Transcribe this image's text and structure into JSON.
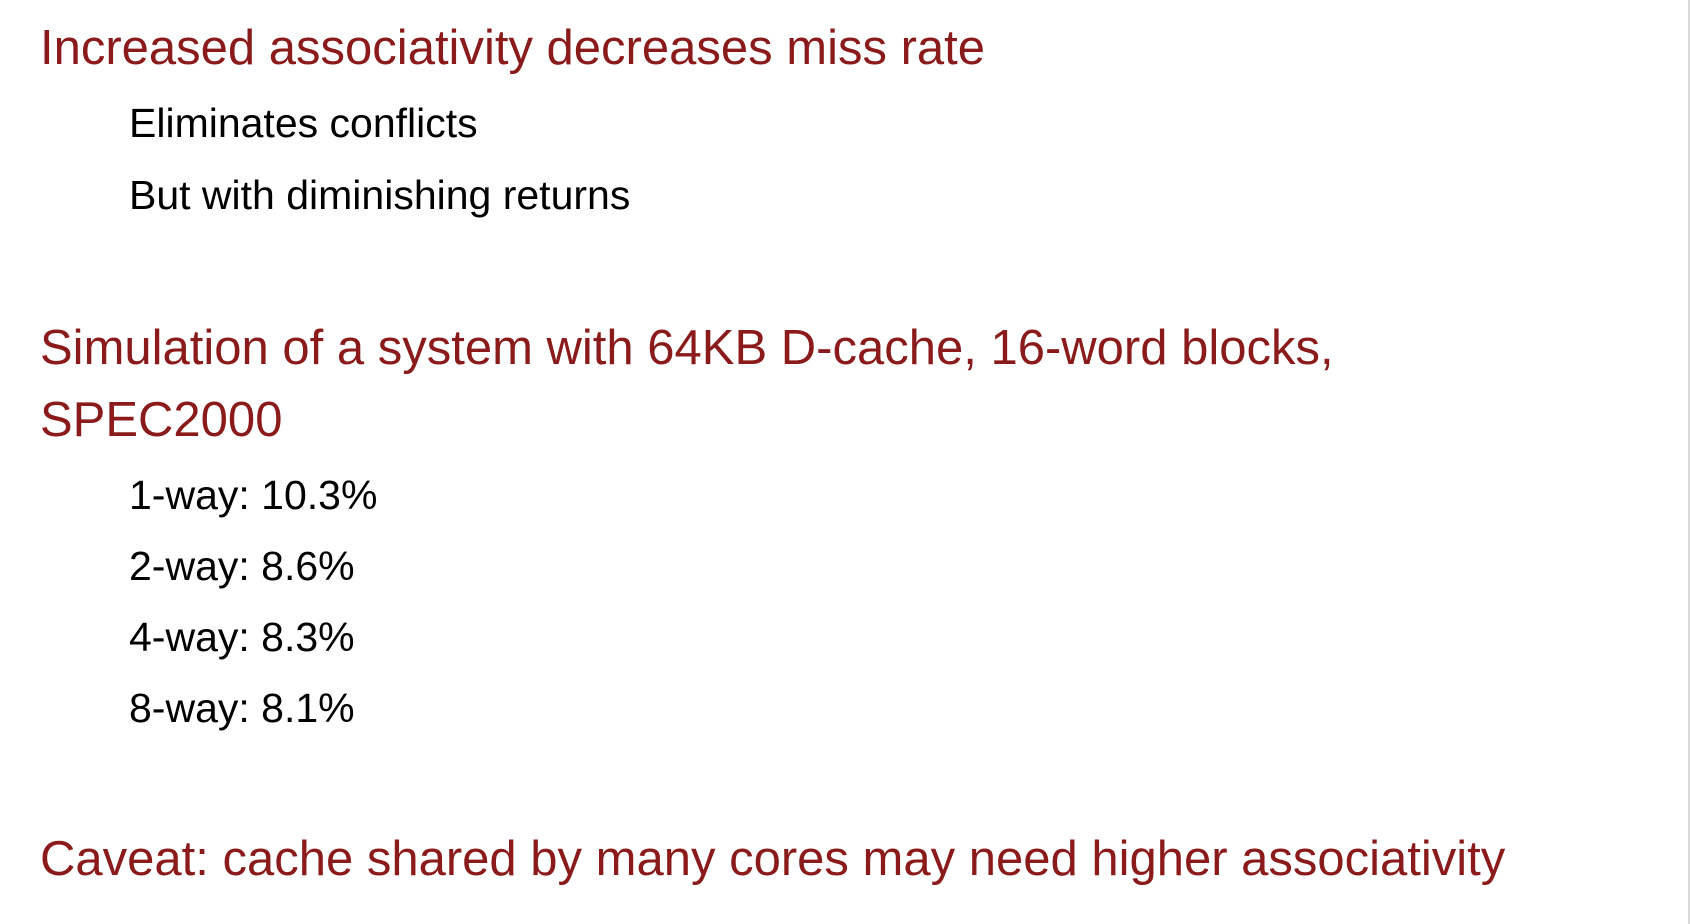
{
  "theme": {
    "accent_color": "#8b1a1a",
    "body_color": "#000000",
    "background": "#ffffff"
  },
  "slide": {
    "point1": {
      "heading": "Increased associativity decreases miss rate",
      "subpoints": [
        "Eliminates conflicts",
        "But with diminishing returns"
      ]
    },
    "point2": {
      "heading": "Simulation of a system with 64KB D-cache, 16-word blocks, SPEC2000",
      "results": [
        "1-way: 10.3%",
        "2-way: 8.6%",
        "4-way: 8.3%",
        "8-way: 8.1%"
      ]
    },
    "point3": {
      "heading": "Caveat: cache shared by many cores may need higher associativity"
    }
  }
}
